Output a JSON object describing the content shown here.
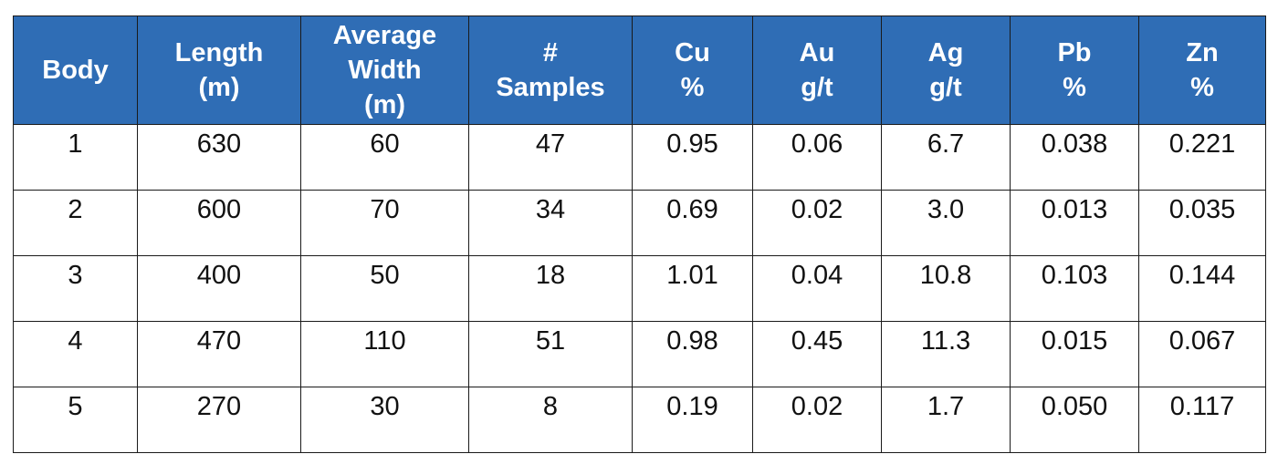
{
  "table": {
    "headers": [
      {
        "lines": [
          "Body"
        ]
      },
      {
        "lines": [
          "Length",
          "(m)"
        ]
      },
      {
        "lines": [
          "Average",
          "Width",
          "(m)"
        ]
      },
      {
        "lines": [
          "#",
          "Samples"
        ]
      },
      {
        "lines": [
          "Cu",
          "%"
        ]
      },
      {
        "lines": [
          "Au",
          "g/t"
        ]
      },
      {
        "lines": [
          "Ag",
          "g/t"
        ]
      },
      {
        "lines": [
          "Pb",
          "%"
        ]
      },
      {
        "lines": [
          "Zn",
          "%"
        ]
      }
    ],
    "rows": [
      [
        "1",
        "630",
        "60",
        "47",
        "0.95",
        "0.06",
        "6.7",
        "0.038",
        "0.221"
      ],
      [
        "2",
        "600",
        "70",
        "34",
        "0.69",
        "0.02",
        "3.0",
        "0.013",
        "0.035"
      ],
      [
        "3",
        "400",
        "50",
        "18",
        "1.01",
        "0.04",
        "10.8",
        "0.103",
        "0.144"
      ],
      [
        "4",
        "470",
        "110",
        "51",
        "0.98",
        "0.45",
        "11.3",
        "0.015",
        "0.067"
      ],
      [
        "5",
        "270",
        "30",
        "8",
        "0.19",
        "0.02",
        "1.7",
        "0.050",
        "0.117"
      ]
    ]
  },
  "colors": {
    "header_bg": "#2f6db5",
    "header_text": "#ffffff",
    "border": "#1a1a1a"
  }
}
